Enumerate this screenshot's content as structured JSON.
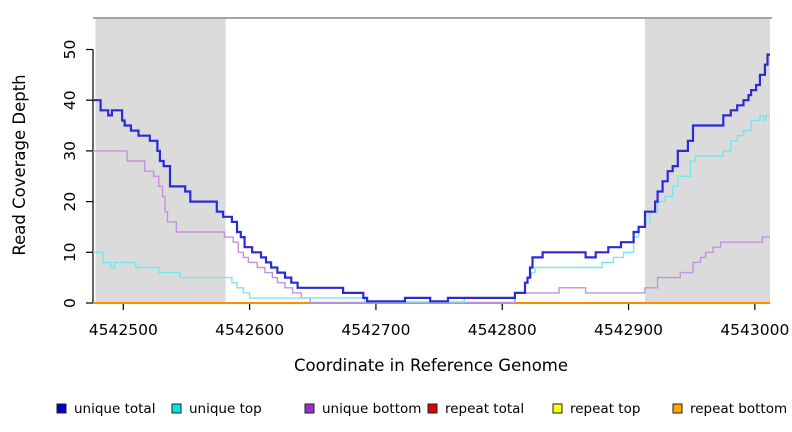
{
  "figure": {
    "xlabel": "Coordinate in Reference Genome",
    "ylabel": "Read Coverage Depth"
  },
  "chart_data": {
    "type": "line",
    "step": true,
    "title": "",
    "xlabel": "Coordinate in Reference Genome",
    "ylabel": "Read Coverage Depth",
    "xlim": [
      4542476,
      4543012
    ],
    "ylim": [
      0,
      56
    ],
    "x_ticks": [
      4542500,
      4542600,
      4542700,
      4542800,
      4542900,
      4543000
    ],
    "y_ticks": [
      0,
      10,
      20,
      30,
      40,
      50
    ],
    "grid": false,
    "legend_position": "bottom",
    "plot_background": "#ffffff",
    "shaded_region_color": "#dbdbdb",
    "top_border_color": "#878787",
    "shaded_regions": [
      {
        "x0": 4542478,
        "x1": 4542581
      },
      {
        "x0": 4542913,
        "x1": 4543012
      }
    ],
    "series": [
      {
        "name": "unique total",
        "line_color": "#2b2bd5",
        "legend_color": "#0000cc",
        "width": 2.2,
        "points": [
          [
            4542476,
            40
          ],
          [
            4542482,
            38
          ],
          [
            4542488,
            37
          ],
          [
            4542491,
            38
          ],
          [
            4542499,
            36
          ],
          [
            4542501,
            35
          ],
          [
            4542506,
            34
          ],
          [
            4542512,
            33
          ],
          [
            4542521,
            32
          ],
          [
            4542527,
            30
          ],
          [
            4542529,
            28
          ],
          [
            4542532,
            27
          ],
          [
            4542537,
            23
          ],
          [
            4542549,
            22
          ],
          [
            4542553,
            20
          ],
          [
            4542574,
            18
          ],
          [
            4542579,
            17
          ],
          [
            4542586,
            16
          ],
          [
            4542590,
            14
          ],
          [
            4542593,
            13
          ],
          [
            4542596,
            11
          ],
          [
            4542602,
            10
          ],
          [
            4542609,
            9
          ],
          [
            4542613,
            8
          ],
          [
            4542617,
            7
          ],
          [
            4542622,
            6
          ],
          [
            4542628,
            5
          ],
          [
            4542633,
            4
          ],
          [
            4542638,
            3
          ],
          [
            4542674,
            2
          ],
          [
            4542690,
            1
          ],
          [
            4542693,
            0
          ],
          [
            4542723,
            1
          ],
          [
            4542743,
            0
          ],
          [
            4542757,
            1
          ],
          [
            4542810,
            2
          ],
          [
            4542818,
            4
          ],
          [
            4542820,
            5
          ],
          [
            4542822,
            7
          ],
          [
            4542824,
            9
          ],
          [
            4542832,
            10
          ],
          [
            4542866,
            9
          ],
          [
            4542874,
            10
          ],
          [
            4542884,
            11
          ],
          [
            4542894,
            12
          ],
          [
            4542904,
            14
          ],
          [
            4542908,
            15
          ],
          [
            4542913,
            18
          ],
          [
            4542921,
            20
          ],
          [
            4542923,
            22
          ],
          [
            4542927,
            24
          ],
          [
            4542931,
            26
          ],
          [
            4542935,
            27
          ],
          [
            4542939,
            30
          ],
          [
            4542947,
            32
          ],
          [
            4542951,
            35
          ],
          [
            4542975,
            37
          ],
          [
            4542981,
            38
          ],
          [
            4542986,
            39
          ],
          [
            4542991,
            40
          ],
          [
            4542995,
            41
          ],
          [
            4542997,
            42
          ],
          [
            4543001,
            43
          ],
          [
            4543004,
            45
          ],
          [
            4543008,
            47
          ],
          [
            4543010,
            49
          ]
        ]
      },
      {
        "name": "unique top",
        "line_color": "#76e7ea",
        "legend_color": "#00e5e5",
        "width": 1.4,
        "points": [
          [
            4542476,
            10
          ],
          [
            4542484,
            8
          ],
          [
            4542490,
            7
          ],
          [
            4542493,
            8
          ],
          [
            4542510,
            7
          ],
          [
            4542528,
            6
          ],
          [
            4542545,
            5
          ],
          [
            4542586,
            4
          ],
          [
            4542590,
            3
          ],
          [
            4542595,
            2
          ],
          [
            4542600,
            1
          ],
          [
            4542691,
            0
          ],
          [
            4542770,
            1
          ],
          [
            4542810,
            2
          ],
          [
            4542818,
            4
          ],
          [
            4542820,
            5
          ],
          [
            4542823,
            6
          ],
          [
            4542826,
            7
          ],
          [
            4542879,
            8
          ],
          [
            4542888,
            9
          ],
          [
            4542896,
            10
          ],
          [
            4542904,
            13
          ],
          [
            4542908,
            15
          ],
          [
            4542913,
            16
          ],
          [
            4542917,
            18
          ],
          [
            4542923,
            20
          ],
          [
            4542929,
            21
          ],
          [
            4542935,
            23
          ],
          [
            4542939,
            25
          ],
          [
            4542949,
            28
          ],
          [
            4542953,
            29
          ],
          [
            4542975,
            30
          ],
          [
            4542981,
            32
          ],
          [
            4542986,
            33
          ],
          [
            4542991,
            34
          ],
          [
            4542997,
            36
          ],
          [
            4543004,
            37
          ],
          [
            4543007,
            36
          ],
          [
            4543009,
            37
          ]
        ]
      },
      {
        "name": "unique bottom",
        "line_color": "#c492de",
        "legend_color": "#9b30d2",
        "width": 1.4,
        "points": [
          [
            4542476,
            30
          ],
          [
            4542503,
            28
          ],
          [
            4542517,
            26
          ],
          [
            4542524,
            25
          ],
          [
            4542528,
            23
          ],
          [
            4542531,
            21
          ],
          [
            4542533,
            18
          ],
          [
            4542535,
            16
          ],
          [
            4542542,
            14
          ],
          [
            4542580,
            13
          ],
          [
            4542587,
            12
          ],
          [
            4542591,
            10
          ],
          [
            4542595,
            9
          ],
          [
            4542599,
            8
          ],
          [
            4542606,
            7
          ],
          [
            4542612,
            6
          ],
          [
            4542618,
            5
          ],
          [
            4542622,
            4
          ],
          [
            4542628,
            3
          ],
          [
            4542634,
            2
          ],
          [
            4542641,
            1
          ],
          [
            4542648,
            0
          ],
          [
            4542810,
            2
          ],
          [
            4542845,
            3
          ],
          [
            4542866,
            2
          ],
          [
            4542913,
            3
          ],
          [
            4542923,
            5
          ],
          [
            4542941,
            6
          ],
          [
            4542951,
            8
          ],
          [
            4542957,
            9
          ],
          [
            4542961,
            10
          ],
          [
            4542967,
            11
          ],
          [
            4542973,
            12
          ],
          [
            4543006,
            13
          ]
        ]
      },
      {
        "name": "repeat total",
        "line_color": "#cc2222",
        "legend_color": "#dd0000",
        "width": 1.2,
        "points": [
          [
            4542476,
            0
          ]
        ]
      },
      {
        "name": "repeat top",
        "line_color": "#ffff00",
        "legend_color": "#ffff00",
        "width": 1.2,
        "points": [
          [
            4542476,
            0
          ]
        ]
      },
      {
        "name": "repeat bottom",
        "line_color": "#ff8c00",
        "legend_color": "#ffa500",
        "width": 2,
        "points": [
          [
            4542476,
            0
          ]
        ]
      }
    ]
  }
}
